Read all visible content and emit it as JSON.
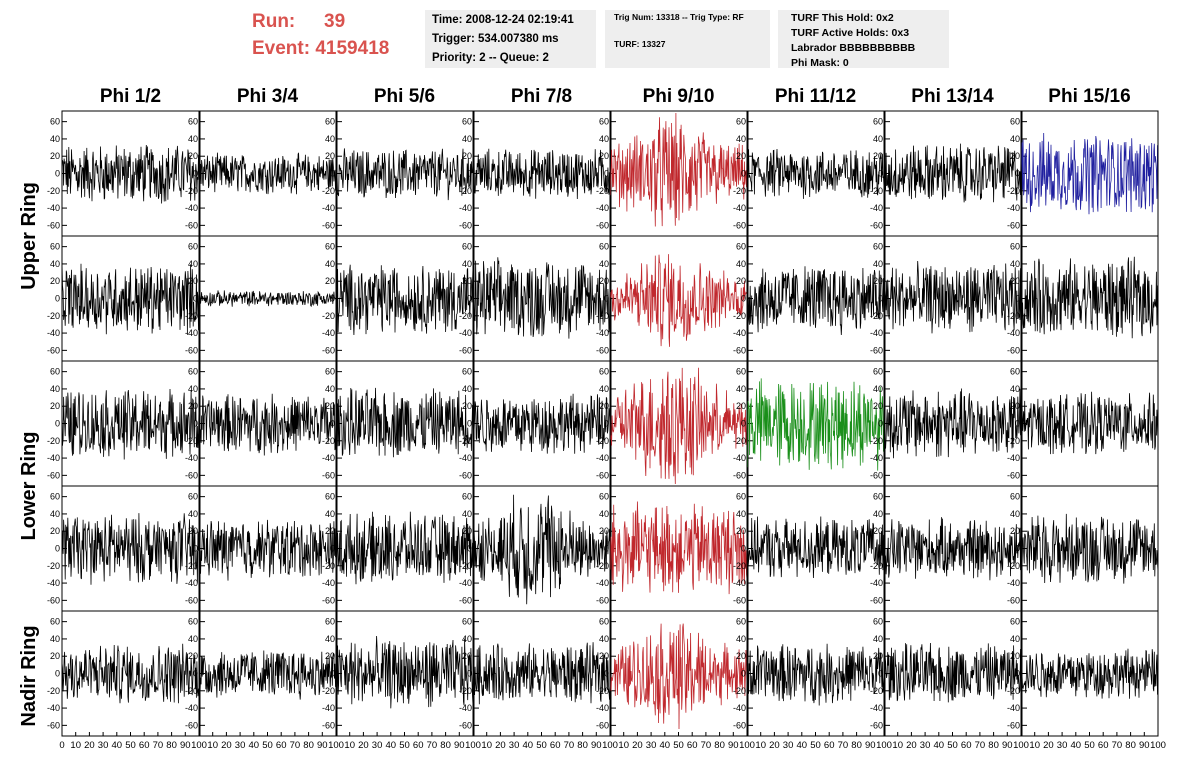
{
  "header": {
    "run_label": "Run:",
    "run_value": "39",
    "event_label": "Event:",
    "event_value": "4159418",
    "time": "Time: 2008-12-24 02:19:41",
    "trigger": "Trigger: 534.007380 ms",
    "priority": "Priority: 2 -- Queue: 2",
    "trig_num": "Trig Num: 13318 -- Trig Type: RF",
    "turf": "TURF: 13327",
    "turf_this_hold": "TURF This Hold: 0x2",
    "turf_active_holds": "TURF Active Holds: 0x3",
    "labrador": "Labrador BBBBBBBBBB",
    "phi_mask": "Phi Mask: 0"
  },
  "columns": [
    "Phi 1/2",
    "Phi 3/4",
    "Phi 5/6",
    "Phi 7/8",
    "Phi 9/10",
    "Phi 11/12",
    "Phi 13/14",
    "Phi 15/16"
  ],
  "rings": [
    "Upper Ring",
    "Lower Ring",
    "Nadir Ring"
  ],
  "colors": {
    "run_text": "#d9534f",
    "trace_default": "#000000",
    "trace_red": "#c0282d",
    "trace_blue": "#1f1f9f",
    "trace_green": "#1a8f1a",
    "info_bg": "#eeeeee"
  },
  "chart_data": {
    "type": "line",
    "grid_rows": 5,
    "grid_cols": 8,
    "xlim": [
      0,
      100
    ],
    "ylim": [
      -70,
      70
    ],
    "y_ticks": [
      -60,
      -40,
      -20,
      0,
      20,
      40,
      60
    ],
    "y_tick_labels": [
      "-60",
      "-40",
      "-20",
      "0",
      "20",
      "40",
      "60"
    ],
    "x_ticks": [
      0,
      10,
      20,
      30,
      40,
      50,
      60,
      70,
      80,
      90,
      100
    ],
    "x_tick_labels": [
      "0",
      "10",
      "20",
      "30",
      "40",
      "50",
      "60",
      "70",
      "80",
      "90",
      "100"
    ],
    "y_axis_side_first_col": "left",
    "y_axis_side_other_cols": "right",
    "grid": false,
    "highlighted": [
      {
        "row": 0,
        "col": 4,
        "color": "red"
      },
      {
        "row": 1,
        "col": 4,
        "color": "red"
      },
      {
        "row": 2,
        "col": 4,
        "color": "red"
      },
      {
        "row": 3,
        "col": 4,
        "color": "red"
      },
      {
        "row": 4,
        "col": 4,
        "color": "red"
      },
      {
        "row": 0,
        "col": 7,
        "color": "blue"
      },
      {
        "row": 2,
        "col": 5,
        "color": "green"
      }
    ],
    "approx_amplitude": [
      [
        30,
        20,
        25,
        25,
        60,
        25,
        30,
        40
      ],
      [
        35,
        8,
        35,
        40,
        50,
        35,
        35,
        40
      ],
      [
        35,
        30,
        35,
        30,
        65,
        45,
        35,
        30
      ],
      [
        35,
        30,
        35,
        60,
        45,
        30,
        30,
        35
      ],
      [
        30,
        25,
        35,
        30,
        55,
        30,
        30,
        25
      ]
    ]
  }
}
